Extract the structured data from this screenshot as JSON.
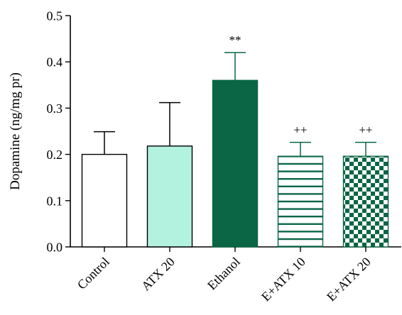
{
  "chart_data": {
    "type": "bar",
    "title": "",
    "xlabel": "",
    "ylabel": "Dopamine (ng/mg pr)",
    "ylim": [
      0,
      0.5
    ],
    "yticks": [
      0.0,
      0.1,
      0.2,
      0.3,
      0.4,
      0.5
    ],
    "ytick_labels": [
      "0.0",
      "0.1",
      "0.2",
      "0.3",
      "0.4",
      "0.5"
    ],
    "categories": [
      "Control",
      "ATX 20",
      "Ethanol",
      "E+ATX 10",
      "E+ATX 20"
    ],
    "values": [
      0.2,
      0.218,
      0.36,
      0.196,
      0.196
    ],
    "errors": [
      0.049,
      0.094,
      0.06,
      0.03,
      0.03
    ],
    "annotations": [
      "",
      "",
      "**",
      "++",
      "++"
    ],
    "fills": [
      "white",
      "#b3f2df",
      "#0a6645",
      "horizontal-stripes",
      "checker"
    ],
    "accent_color": "#0a6645",
    "grid": false
  }
}
